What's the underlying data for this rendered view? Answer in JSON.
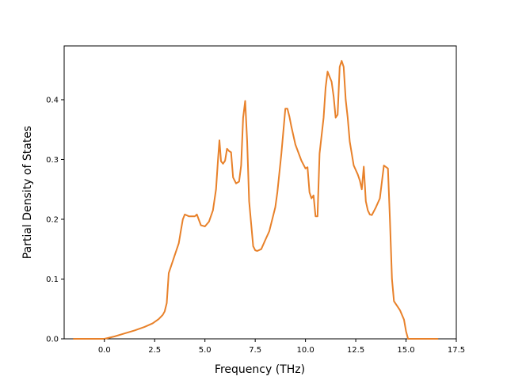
{
  "chart_data": {
    "type": "line",
    "title": "",
    "xlabel": "Frequency (THz)",
    "ylabel": "Partial Density of States",
    "xlim": [
      -2.0,
      17.5
    ],
    "ylim": [
      0.0,
      0.49
    ],
    "xticks": [
      0.0,
      2.5,
      5.0,
      7.5,
      10.0,
      12.5,
      15.0,
      17.5
    ],
    "xtick_labels": [
      "0.0",
      "2.5",
      "5.0",
      "7.5",
      "10.0",
      "12.5",
      "15.0",
      "17.5"
    ],
    "yticks": [
      0.0,
      0.1,
      0.2,
      0.3,
      0.4
    ],
    "ytick_labels": [
      "0.0",
      "0.1",
      "0.2",
      "0.3",
      "0.4"
    ],
    "grid": false,
    "colors": {
      "series": "#e8812a",
      "axis": "#000000"
    },
    "series": [
      {
        "x": [
          -1.55,
          -0.5,
          0.0,
          0.5,
          1.0,
          1.5,
          2.0,
          2.4,
          2.7,
          2.9,
          3.0,
          3.1,
          3.2,
          3.4,
          3.5,
          3.7,
          3.8,
          3.9,
          4.0,
          4.2,
          4.5,
          4.6,
          4.8,
          5.0,
          5.2,
          5.4,
          5.55,
          5.65,
          5.72,
          5.8,
          5.9,
          6.0,
          6.1,
          6.2,
          6.3,
          6.4,
          6.55,
          6.7,
          6.8,
          6.9,
          7.0,
          7.1,
          7.2,
          7.4,
          7.5,
          7.6,
          7.8,
          8.0,
          8.2,
          8.5,
          8.6,
          8.8,
          9.0,
          9.1,
          9.2,
          9.3,
          9.5,
          9.8,
          10.0,
          10.1,
          10.2,
          10.3,
          10.4,
          10.5,
          10.6,
          10.7,
          10.9,
          11.0,
          11.1,
          11.3,
          11.4,
          11.5,
          11.6,
          11.7,
          11.8,
          11.9,
          12.0,
          12.1,
          12.2,
          12.4,
          12.6,
          12.7,
          12.8,
          12.9,
          13.0,
          13.1,
          13.2,
          13.3,
          13.5,
          13.7,
          13.9,
          14.1,
          14.2,
          14.3,
          14.4,
          14.5,
          14.7,
          14.9,
          15.0,
          15.1,
          15.5,
          16.6
        ],
        "y": [
          0.0,
          0.0,
          0.0,
          0.004,
          0.009,
          0.014,
          0.02,
          0.026,
          0.033,
          0.04,
          0.046,
          0.06,
          0.11,
          0.13,
          0.14,
          0.16,
          0.18,
          0.2,
          0.208,
          0.205,
          0.205,
          0.208,
          0.19,
          0.188,
          0.196,
          0.215,
          0.25,
          0.3,
          0.332,
          0.297,
          0.293,
          0.298,
          0.318,
          0.314,
          0.312,
          0.27,
          0.26,
          0.263,
          0.29,
          0.37,
          0.398,
          0.33,
          0.23,
          0.155,
          0.148,
          0.147,
          0.15,
          0.165,
          0.18,
          0.22,
          0.245,
          0.31,
          0.385,
          0.385,
          0.372,
          0.355,
          0.325,
          0.298,
          0.285,
          0.287,
          0.245,
          0.235,
          0.24,
          0.205,
          0.205,
          0.31,
          0.37,
          0.42,
          0.447,
          0.43,
          0.405,
          0.37,
          0.375,
          0.455,
          0.465,
          0.455,
          0.4,
          0.37,
          0.33,
          0.29,
          0.275,
          0.265,
          0.25,
          0.288,
          0.23,
          0.215,
          0.208,
          0.207,
          0.22,
          0.235,
          0.29,
          0.285,
          0.2,
          0.1,
          0.063,
          0.058,
          0.048,
          0.032,
          0.013,
          0.0,
          0.0,
          0.0
        ]
      }
    ]
  }
}
